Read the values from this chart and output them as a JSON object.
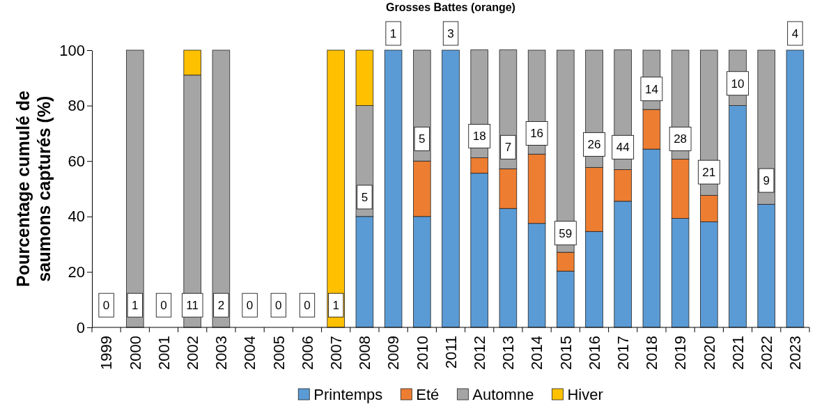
{
  "chart_data": {
    "type": "bar",
    "title": "Grosses Battes (orange)",
    "ylabel": "Pourcentage cumulé de saumons capturés (%)",
    "categories": [
      "1999",
      "2000",
      "2001",
      "2002",
      "2003",
      "2004",
      "2005",
      "2006",
      "2007",
      "2008",
      "2009",
      "2010",
      "2011",
      "2012",
      "2013",
      "2014",
      "2015",
      "2016",
      "2017",
      "2018",
      "2019",
      "2020",
      "2021",
      "2022",
      "2023"
    ],
    "stacked": true,
    "legend": "bottom",
    "ylim": [
      0,
      100
    ],
    "yticks": [
      0,
      20,
      40,
      60,
      80,
      100
    ],
    "series": [
      {
        "name": "Printemps",
        "color": "#5b9bd5",
        "values": [
          0,
          0,
          0,
          0,
          0,
          0,
          0,
          0,
          0,
          40,
          100,
          40,
          100,
          55.6,
          42.9,
          37.5,
          20.3,
          34.6,
          45.5,
          64.3,
          39.3,
          38.1,
          80,
          44.4,
          100
        ]
      },
      {
        "name": "Eté",
        "color": "#ed7d31",
        "values": [
          0,
          0,
          0,
          0,
          0,
          0,
          0,
          0,
          0,
          0,
          0,
          20,
          0,
          5.6,
          14.3,
          25,
          6.8,
          23.1,
          11.4,
          14.3,
          21.4,
          9.5,
          0,
          0,
          0
        ]
      },
      {
        "name": "Automne",
        "color": "#a5a5a5",
        "values": [
          0,
          100,
          0,
          91,
          100,
          0,
          0,
          0,
          0,
          40,
          0,
          40,
          0,
          38.9,
          42.9,
          37.5,
          72.9,
          42.3,
          43.2,
          21.4,
          39.3,
          52.4,
          20,
          55.6,
          0
        ]
      },
      {
        "name": "Hiver",
        "color": "#ffc000",
        "values": [
          0,
          0,
          0,
          9,
          0,
          0,
          0,
          0,
          100,
          20,
          0,
          0,
          0,
          0,
          0,
          0,
          0,
          0,
          0,
          0,
          0,
          0,
          0,
          0,
          0
        ]
      }
    ],
    "annotations": [
      {
        "text": "0",
        "x": "1999",
        "y": 8
      },
      {
        "text": "1",
        "x": "2000",
        "y": 8
      },
      {
        "text": "0",
        "x": "2001",
        "y": 8
      },
      {
        "text": "11",
        "x": "2002",
        "y": 8
      },
      {
        "text": "2",
        "x": "2003",
        "y": 8
      },
      {
        "text": "0",
        "x": "2004",
        "y": 8
      },
      {
        "text": "0",
        "x": "2005",
        "y": 8
      },
      {
        "text": "0",
        "x": "2006",
        "y": 8
      },
      {
        "text": "1",
        "x": "2007",
        "y": 8
      },
      {
        "text": "5",
        "x": "2008",
        "y": 47
      },
      {
        "text": "1",
        "x": "2009",
        "y": 100
      },
      {
        "text": "5",
        "x": "2010",
        "y": 68
      },
      {
        "text": "3",
        "x": "2011",
        "y": 100
      },
      {
        "text": "18",
        "x": "2012",
        "y": 69
      },
      {
        "text": "7",
        "x": "2013",
        "y": 65
      },
      {
        "text": "16",
        "x": "2014",
        "y": 70
      },
      {
        "text": "59",
        "x": "2015",
        "y": 34
      },
      {
        "text": "26",
        "x": "2016",
        "y": 66
      },
      {
        "text": "44",
        "x": "2017",
        "y": 65
      },
      {
        "text": "14",
        "x": "2018",
        "y": 86
      },
      {
        "text": "28",
        "x": "2019",
        "y": 68
      },
      {
        "text": "21",
        "x": "2020",
        "y": 56
      },
      {
        "text": "10",
        "x": "2021",
        "y": 88
      },
      {
        "text": "9",
        "x": "2022",
        "y": 53
      },
      {
        "text": "4",
        "x": "2023",
        "y": 100
      }
    ]
  }
}
